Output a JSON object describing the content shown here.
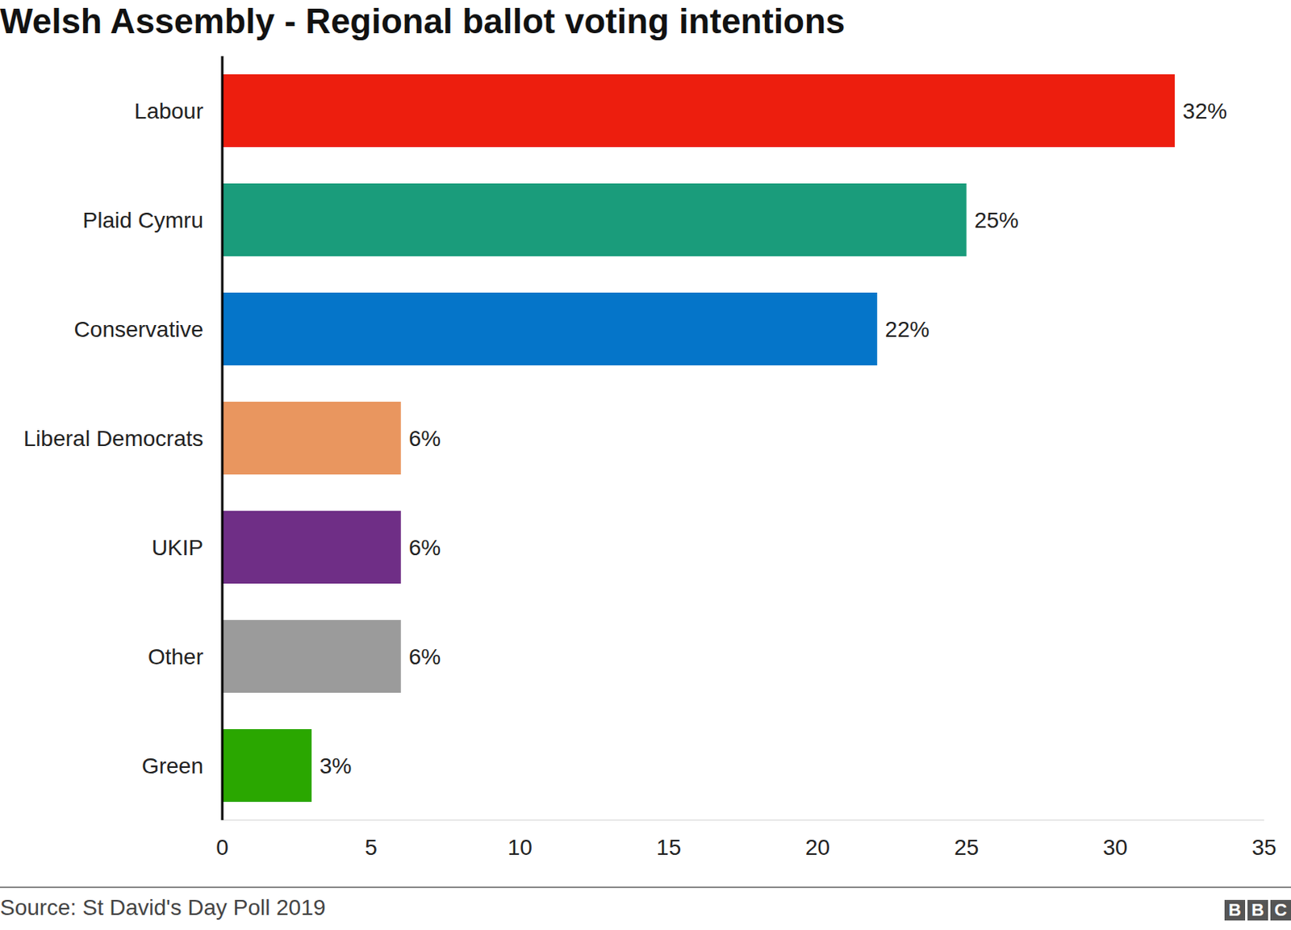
{
  "chart_data": {
    "type": "bar",
    "title": "Welsh Assembly - Regional ballot voting intentions",
    "orientation": "horizontal",
    "categories": [
      "Labour",
      "Plaid Cymru",
      "Conservative",
      "Liberal Democrats",
      "UKIP",
      "Other",
      "Green"
    ],
    "values": [
      32,
      25,
      22,
      6,
      6,
      6,
      3
    ],
    "value_labels": [
      "32%",
      "25%",
      "22%",
      "6%",
      "6%",
      "6%",
      "3%"
    ],
    "data_labels": true,
    "colors": [
      "#ed1e0e",
      "#1a9c7b",
      "#0575c9",
      "#e9965f",
      "#6f2e86",
      "#9b9b9b",
      "#2aa700"
    ],
    "xlim": [
      0,
      35
    ],
    "xticks": [
      0,
      5,
      10,
      15,
      20,
      25,
      30,
      35
    ],
    "grid": false,
    "source": "Source: St David's Day Poll 2019",
    "logo": "BBC"
  }
}
